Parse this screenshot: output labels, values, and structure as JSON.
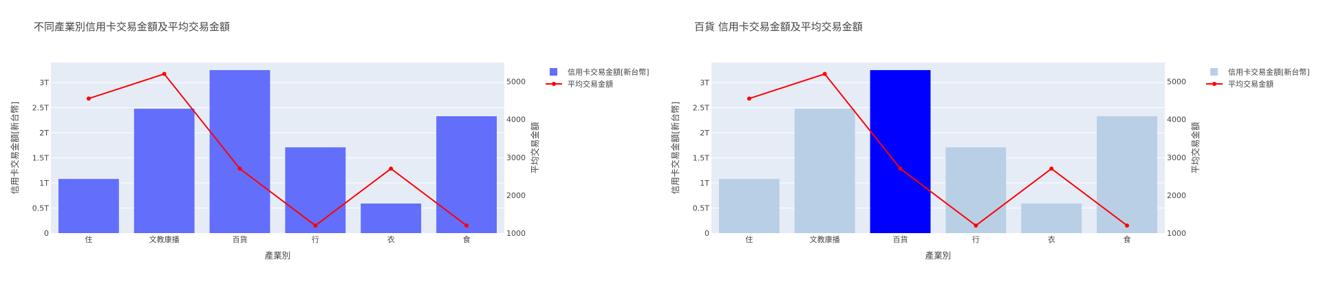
{
  "chart_data": [
    {
      "type": "bar",
      "title": "不同產業別信用卡交易金額及平均交易金額",
      "xlabel": "產業別",
      "ylabel": "信用卡交易金額[新台幣]",
      "y2label": "平均交易金額",
      "categories": [
        "住",
        "文教康播",
        "百貨",
        "行",
        "衣",
        "食"
      ],
      "ylim": [
        0,
        3.4
      ],
      "yticks": [
        0,
        0.5,
        1,
        1.5,
        2,
        2.5,
        3
      ],
      "ytick_labels": [
        "0",
        "0.5T",
        "1T",
        "1.5T",
        "2T",
        "2.5T",
        "3T"
      ],
      "y2lim": [
        1000,
        5500
      ],
      "y2ticks": [
        1000,
        2000,
        3000,
        4000,
        5000
      ],
      "series": [
        {
          "name": "信用卡交易金額[新台幣]",
          "type": "bar",
          "axis": "y",
          "unit": "T",
          "values": [
            1.08,
            2.48,
            3.25,
            1.71,
            0.59,
            2.33
          ]
        },
        {
          "name": "平均交易金額",
          "type": "line",
          "axis": "y2",
          "values": [
            4550,
            5200,
            2700,
            1200,
            2700,
            1200
          ]
        }
      ],
      "highlight_index": -1,
      "colors": {
        "bar": "#636efa",
        "line": "#ff0000",
        "plot_bg": "#e5ecf6"
      },
      "legend": "top-right",
      "grid": true
    },
    {
      "type": "bar",
      "title": "百貨 信用卡交易金額及平均交易金額",
      "xlabel": "產業別",
      "ylabel": "信用卡交易金額[新台幣]",
      "y2label": "平均交易金額",
      "categories": [
        "住",
        "文教康播",
        "百貨",
        "行",
        "衣",
        "食"
      ],
      "ylim": [
        0,
        3.4
      ],
      "yticks": [
        0,
        0.5,
        1,
        1.5,
        2,
        2.5,
        3
      ],
      "ytick_labels": [
        "0",
        "0.5T",
        "1T",
        "1.5T",
        "2T",
        "2.5T",
        "3T"
      ],
      "y2lim": [
        1000,
        5500
      ],
      "y2ticks": [
        1000,
        2000,
        3000,
        4000,
        5000
      ],
      "series": [
        {
          "name": "信用卡交易金額[新台幣]",
          "type": "bar",
          "axis": "y",
          "unit": "T",
          "values": [
            1.08,
            2.48,
            3.25,
            1.71,
            0.59,
            2.33
          ]
        },
        {
          "name": "平均交易金額",
          "type": "line",
          "axis": "y2",
          "values": [
            4550,
            5200,
            2700,
            1200,
            2700,
            1200
          ]
        }
      ],
      "highlight_index": 2,
      "colors": {
        "bar": "#b9cfe5",
        "highlight": "#0000ff",
        "line": "#ff0000",
        "plot_bg": "#e5ecf6"
      },
      "legend": "top-right",
      "grid": true
    }
  ]
}
